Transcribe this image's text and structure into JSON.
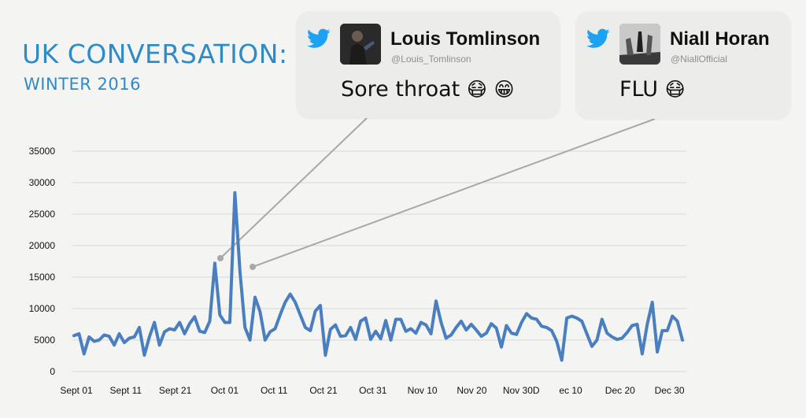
{
  "header": {
    "title": "UK CONVERSATION:",
    "subtitle": "WINTER 2016"
  },
  "tweets": [
    {
      "name": "Louis Tomlinson",
      "handle": "@Louis_Tomlinson",
      "message": "Sore throat",
      "emojis": [
        "😷",
        "😁"
      ],
      "icon": "twitter-bird-icon",
      "avatar": "profile-photo"
    },
    {
      "name": "Niall Horan",
      "handle": "@NiallOfficial",
      "message": "FLU",
      "emojis": [
        "😷"
      ],
      "icon": "twitter-bird-icon",
      "avatar": "profile-photo"
    }
  ],
  "colors": {
    "accent": "#2e8bc8",
    "line": "#4a7fbf",
    "twitter": "#1da1f2",
    "connector": "#a8a8a8",
    "grid": "#d8d8d8"
  },
  "chart_data": {
    "type": "line",
    "title": "",
    "xlabel": "",
    "ylabel": "",
    "ylim": [
      0,
      35000
    ],
    "yticks": [
      "35000",
      "30000",
      "25000",
      "20000",
      "15000",
      "10000",
      "5000",
      "0"
    ],
    "xticks": [
      "Sept 01",
      "Sept 11",
      "Sept 21",
      "Oct 01",
      "Oct 11",
      "Oct 21",
      "Oct 31",
      "Nov 10",
      "Nov 20",
      "Nov 30D",
      "ec 10",
      "Dec 20",
      "Dec 30"
    ],
    "grid": true,
    "legend": "none",
    "x_start": "2016-09-01",
    "series": [
      {
        "values": [
          5700,
          6000,
          2800,
          5500,
          4800,
          5000,
          5800,
          5600,
          4200,
          6000,
          4600,
          5300,
          5500,
          7000,
          2600,
          5500,
          7800,
          4200,
          6300,
          6800,
          6600,
          7800,
          6000,
          7600,
          8700,
          6400,
          6200,
          8000,
          17200,
          9000,
          7800,
          7800,
          28400,
          16000,
          7000,
          5000,
          11800,
          9500,
          5000,
          6300,
          6800,
          9000,
          11000,
          12300,
          11000,
          9000,
          7000,
          6500,
          9600,
          10500,
          2600,
          6700,
          7400,
          5600,
          5700,
          7000,
          5100,
          8000,
          8500,
          5100,
          6400,
          5200,
          8100,
          5000,
          8300,
          8300,
          6400,
          6800,
          6100,
          7800,
          7400,
          6000,
          11200,
          7800,
          5300,
          5800,
          7000,
          8000,
          6600,
          7500,
          6600,
          5600,
          6100,
          7600,
          6900,
          3900,
          7300,
          6100,
          5900,
          7800,
          9200,
          8500,
          8300,
          7200,
          7000,
          6500,
          4800,
          1800,
          8500,
          8800,
          8500,
          8000,
          6000,
          4000,
          5000,
          8300,
          6100,
          5500,
          5100,
          5300,
          6200,
          7300,
          7500,
          2800,
          7500,
          11000,
          3100,
          6500,
          6500,
          8800,
          8000,
          5000
        ]
      }
    ]
  }
}
